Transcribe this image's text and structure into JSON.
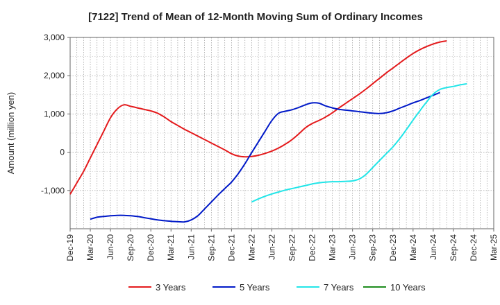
{
  "chart_data": {
    "type": "line",
    "title": "[7122]  Trend of Mean of 12-Month Moving Sum of Ordinary Incomes",
    "ylabel": "Amount (million yen)",
    "xlabel": "",
    "ylim": [
      -2000,
      3000
    ],
    "x_ticks": [
      "Dec-19",
      "Mar-20",
      "Jun-20",
      "Sep-20",
      "Dec-20",
      "Mar-21",
      "Jun-21",
      "Sep-21",
      "Dec-21",
      "Mar-22",
      "Jun-22",
      "Sep-22",
      "Dec-22",
      "Mar-23",
      "Jun-23",
      "Sep-23",
      "Dec-23",
      "Mar-24",
      "Jun-24",
      "Sep-24",
      "Dec-24",
      "Mar-25"
    ],
    "y_ticks": [
      {
        "value": -1000,
        "label": "-1,000"
      },
      {
        "value": 0,
        "label": "0"
      },
      {
        "value": 1000,
        "label": "1,000"
      },
      {
        "value": 2000,
        "label": "2,000"
      },
      {
        "value": 3000,
        "label": "3,000"
      }
    ],
    "grid": true,
    "legend_position": "bottom",
    "series": [
      {
        "name": "3 Years",
        "color": "#e41a1c",
        "start_month_index": 0,
        "values": [
          -1100,
          -800,
          -500,
          -150,
          200,
          550,
          900,
          1130,
          1240,
          1200,
          1160,
          1120,
          1080,
          1020,
          920,
          800,
          700,
          600,
          510,
          420,
          330,
          240,
          150,
          60,
          -40,
          -100,
          -120,
          -110,
          -80,
          -30,
          30,
          110,
          210,
          330,
          480,
          640,
          750,
          830,
          920,
          1030,
          1160,
          1280,
          1400,
          1520,
          1650,
          1790,
          1930,
          2070,
          2200,
          2330,
          2460,
          2580,
          2680,
          2760,
          2830,
          2880,
          2910
        ]
      },
      {
        "name": "5 Years",
        "color": "#0019c8",
        "start_month_index": 3,
        "values": [
          -1750,
          -1700,
          -1680,
          -1660,
          -1650,
          -1650,
          -1660,
          -1680,
          -1710,
          -1740,
          -1770,
          -1790,
          -1805,
          -1815,
          -1820,
          -1770,
          -1660,
          -1480,
          -1300,
          -1120,
          -950,
          -780,
          -560,
          -300,
          -10,
          270,
          550,
          830,
          1020,
          1070,
          1110,
          1170,
          1240,
          1290,
          1280,
          1210,
          1160,
          1120,
          1100,
          1080,
          1060,
          1040,
          1020,
          1010,
          1030,
          1080,
          1150,
          1220,
          1290,
          1350,
          1420,
          1490,
          1560
        ]
      },
      {
        "name": "7 Years",
        "color": "#22e5e8",
        "start_month_index": 27,
        "values": [
          -1300,
          -1220,
          -1150,
          -1090,
          -1040,
          -990,
          -950,
          -910,
          -870,
          -830,
          -800,
          -780,
          -770,
          -770,
          -760,
          -750,
          -700,
          -580,
          -400,
          -220,
          -40,
          140,
          350,
          590,
          840,
          1080,
          1310,
          1520,
          1640,
          1690,
          1720,
          1760,
          1790
        ]
      },
      {
        "name": "10 Years",
        "color": "#1e8c1e",
        "start_month_index": 0,
        "values": []
      }
    ]
  }
}
